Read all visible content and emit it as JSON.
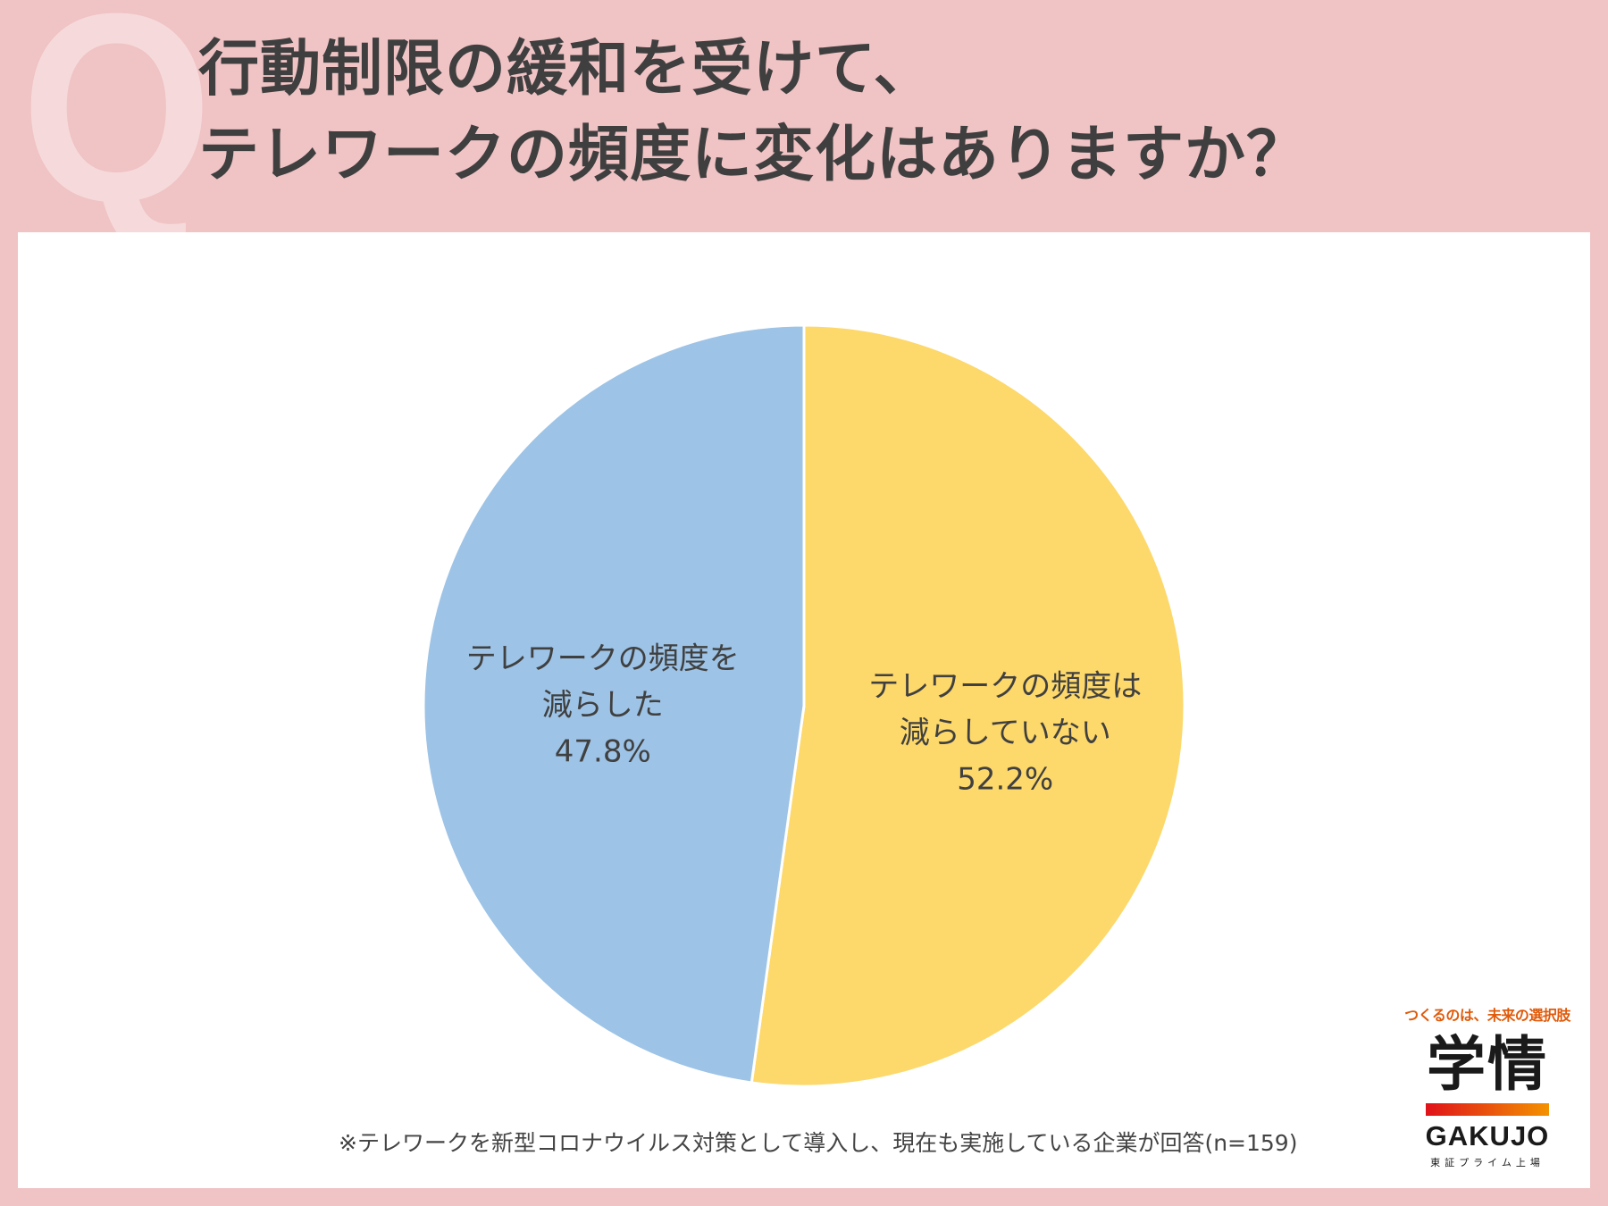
{
  "header": {
    "q_mark": "Q",
    "title_line1": "行動制限の緩和を受けて、",
    "title_line2": "テレワークの頻度に変化はありますか？"
  },
  "chart_data": {
    "type": "pie",
    "title": "行動制限の緩和を受けて、テレワークの頻度に変化はありますか？",
    "slices": [
      {
        "label_line1": "テレワークの頻度は",
        "label_line2": "減らしていない",
        "value": 52.2,
        "value_label": "52.2%",
        "color": "#fdd86a"
      },
      {
        "label_line1": "テレワークの頻度を",
        "label_line2": "減らした",
        "value": 47.8,
        "value_label": "47.8%",
        "color": "#9dc3e6"
      }
    ],
    "start_angle_deg": 0,
    "direction": "clockwise",
    "legend": "none"
  },
  "footnote": "※テレワークを新型コロナウイルス対策として導入し、現在も実施している企業が回答(n=159)",
  "logo": {
    "tagline": "つくるのは、未来の選択肢",
    "kanji": "学情",
    "brand": "GAKUJO",
    "sub": "東証プライム上場"
  }
}
